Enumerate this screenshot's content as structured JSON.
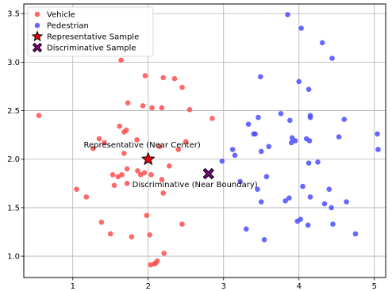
{
  "chart_data": {
    "type": "scatter",
    "xlim": [
      0.35,
      5.15
    ],
    "ylim": [
      0.78,
      3.6
    ],
    "xticks": [
      1,
      2,
      3,
      4,
      5
    ],
    "yticks": [
      1.0,
      1.5,
      2.0,
      2.5,
      3.0,
      3.5
    ],
    "xtick_labels": [
      "1",
      "2",
      "3",
      "4",
      "5"
    ],
    "ytick_labels": [
      "1.0",
      "1.5",
      "2.0",
      "2.5",
      "3.0",
      "3.5"
    ],
    "grid": true,
    "legend_position": "upper-left",
    "legend": [
      {
        "label": "Vehicle",
        "marker": "circle",
        "color": "#ff4d4d"
      },
      {
        "label": "Pedestrian",
        "marker": "circle",
        "color": "#4d4dff"
      },
      {
        "label": "Representative Sample",
        "marker": "star",
        "color": "#e8000b"
      },
      {
        "label": "Discriminative Sample",
        "marker": "x",
        "color": "#800080"
      }
    ],
    "series": [
      {
        "name": "Vehicle",
        "color": "#ff4d4d",
        "points": [
          [
            0.55,
            2.45
          ],
          [
            1.05,
            1.69
          ],
          [
            1.18,
            1.61
          ],
          [
            1.27,
            2.11
          ],
          [
            1.35,
            2.21
          ],
          [
            1.38,
            1.35
          ],
          [
            1.42,
            2.17
          ],
          [
            1.5,
            1.23
          ],
          [
            1.53,
            1.84
          ],
          [
            1.55,
            1.73
          ],
          [
            1.6,
            1.82
          ],
          [
            1.62,
            2.34
          ],
          [
            1.64,
            3.02
          ],
          [
            1.65,
            1.84
          ],
          [
            1.68,
            2.06
          ],
          [
            1.68,
            2.28
          ],
          [
            1.71,
            2.3
          ],
          [
            1.72,
            1.9
          ],
          [
            1.72,
            1.75
          ],
          [
            1.73,
            2.58
          ],
          [
            1.78,
            1.2
          ],
          [
            1.85,
            2.2
          ],
          [
            1.86,
            1.88
          ],
          [
            1.9,
            1.84
          ],
          [
            1.93,
            2.55
          ],
          [
            1.95,
            1.86
          ],
          [
            1.96,
            2.86
          ],
          [
            1.98,
            1.42
          ],
          [
            2.02,
            1.22
          ],
          [
            2.03,
            0.91
          ],
          [
            2.04,
            1.84
          ],
          [
            2.05,
            2.53
          ],
          [
            2.08,
            0.92
          ],
          [
            2.1,
            0.93
          ],
          [
            2.12,
            0.95
          ],
          [
            2.15,
            2.13
          ],
          [
            2.18,
            1.79
          ],
          [
            2.18,
            2.53
          ],
          [
            2.2,
            1.65
          ],
          [
            2.2,
            2.84
          ],
          [
            2.21,
            1.03
          ],
          [
            2.28,
            1.93
          ],
          [
            2.35,
            2.83
          ],
          [
            2.4,
            2.1
          ],
          [
            2.45,
            1.33
          ],
          [
            2.45,
            2.74
          ],
          [
            2.5,
            2.18
          ],
          [
            2.55,
            2.51
          ],
          [
            2.85,
            2.42
          ]
        ]
      },
      {
        "name": "Pedestrian",
        "color": "#4d4dff",
        "points": [
          [
            2.98,
            1.98
          ],
          [
            3.12,
            2.1
          ],
          [
            3.15,
            2.04
          ],
          [
            3.22,
            1.77
          ],
          [
            3.3,
            1.28
          ],
          [
            3.33,
            2.36
          ],
          [
            3.4,
            2.26
          ],
          [
            3.42,
            2.26
          ],
          [
            3.45,
            1.69
          ],
          [
            3.46,
            2.43
          ],
          [
            3.49,
            2.85
          ],
          [
            3.5,
            1.56
          ],
          [
            3.5,
            2.08
          ],
          [
            3.54,
            1.17
          ],
          [
            3.57,
            1.82
          ],
          [
            3.6,
            2.13
          ],
          [
            3.76,
            2.47
          ],
          [
            3.82,
            1.57
          ],
          [
            3.85,
            3.49
          ],
          [
            3.87,
            1.6
          ],
          [
            3.88,
            2.4
          ],
          [
            3.9,
            2.17
          ],
          [
            3.91,
            2.22
          ],
          [
            3.95,
            2.19
          ],
          [
            3.98,
            1.36
          ],
          [
            4.0,
            2.8
          ],
          [
            4.02,
            1.38
          ],
          [
            4.03,
            3.35
          ],
          [
            4.05,
            1.72
          ],
          [
            4.1,
            2.21
          ],
          [
            4.12,
            1.32
          ],
          [
            4.13,
            2.72
          ],
          [
            4.13,
            1.96
          ],
          [
            4.14,
            2.19
          ],
          [
            4.15,
            2.43
          ],
          [
            4.15,
            2.45
          ],
          [
            4.15,
            1.61
          ],
          [
            4.25,
            1.97
          ],
          [
            4.31,
            3.2
          ],
          [
            4.34,
            1.54
          ],
          [
            4.4,
            1.69
          ],
          [
            4.43,
            1.5
          ],
          [
            4.44,
            3.04
          ],
          [
            4.45,
            1.33
          ],
          [
            4.53,
            2.23
          ],
          [
            4.6,
            2.41
          ],
          [
            4.63,
            1.56
          ],
          [
            4.75,
            1.23
          ],
          [
            5.04,
            2.26
          ],
          [
            5.05,
            2.1
          ]
        ]
      }
    ],
    "representative_sample": {
      "x": 2.0,
      "y": 2.0,
      "color": "#e8000b",
      "edge_color": "#000000"
    },
    "discriminative_sample": {
      "x": 2.8,
      "y": 1.85,
      "color": "#800080",
      "edge_color": "#000000"
    },
    "annotations": [
      {
        "text": "Representative (Near Center)",
        "x": 1.92,
        "y": 2.12
      },
      {
        "text": "Discriminative (Near Boundary)",
        "x": 2.62,
        "y": 1.71
      }
    ]
  }
}
